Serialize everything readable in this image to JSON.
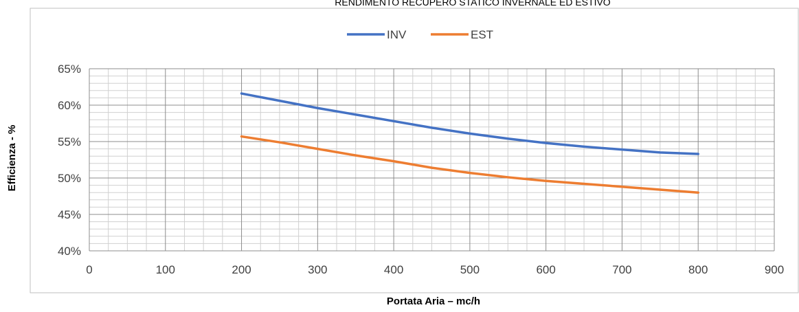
{
  "chart_data": {
    "type": "line",
    "title": "RENDIMENTO RECUPERO STATICO INVERNALE      ED ESTIVO",
    "xlabel": "Portata Aria – mc/h",
    "ylabel": "Efficienza - %",
    "xlim": [
      0,
      900
    ],
    "ylim": [
      40,
      65
    ],
    "x_ticks": [
      0,
      100,
      200,
      300,
      400,
      500,
      600,
      700,
      800,
      900
    ],
    "y_ticks": [
      40,
      45,
      50,
      55,
      60,
      65
    ],
    "y_tick_labels": [
      "40%",
      "45%",
      "50%",
      "55%",
      "60%",
      "65%"
    ],
    "grid": true,
    "legend_position": "top",
    "series": [
      {
        "name": "INV",
        "color": "#4472c4",
        "x": [
          200,
          250,
          300,
          350,
          400,
          450,
          500,
          550,
          600,
          650,
          700,
          750,
          800
        ],
        "y": [
          61.6,
          60.6,
          59.6,
          58.7,
          57.8,
          56.9,
          56.1,
          55.4,
          54.8,
          54.3,
          53.9,
          53.5,
          53.3
        ]
      },
      {
        "name": "EST",
        "color": "#ed7d31",
        "x": [
          200,
          250,
          300,
          350,
          400,
          450,
          500,
          550,
          600,
          650,
          700,
          750,
          800
        ],
        "y": [
          55.7,
          54.9,
          54.0,
          53.1,
          52.3,
          51.4,
          50.7,
          50.1,
          49.6,
          49.2,
          48.8,
          48.4,
          48.0
        ]
      }
    ]
  }
}
